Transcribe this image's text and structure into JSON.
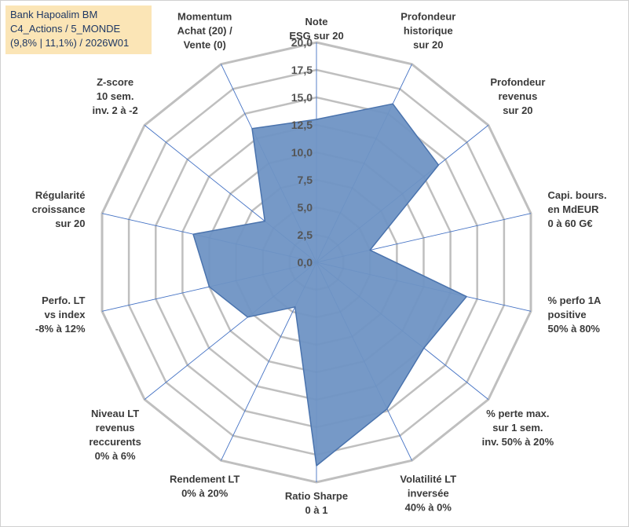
{
  "title": {
    "line1": "Bank Hapoalim BM",
    "line2": "C4_Actions / 5_MONDE",
    "line3": "(9,8% | 11,1%) / 2026W01"
  },
  "colors": {
    "fill": "#6f94c4",
    "stroke": "#4a73ad",
    "grid": "#bfbfbf",
    "spoke": "#4472c4",
    "title_bg": "#fbe5b6"
  },
  "chart_data": {
    "type": "radar",
    "rmax": 20,
    "ticks": [
      "0,0",
      "2,5",
      "5,0",
      "7,5",
      "10,0",
      "12,5",
      "15,0",
      "17,5",
      "20,0"
    ],
    "axes": [
      {
        "label": [
          "Note",
          "ESG sur 20"
        ],
        "value": 13.0
      },
      {
        "label": [
          "Profondeur",
          "historique",
          "sur 20"
        ],
        "value": 16.0
      },
      {
        "label": [
          "Profondeur",
          "revenus",
          "sur 20"
        ],
        "value": 14.2
      },
      {
        "label": [
          "Capi. bours.",
          "en MdEUR",
          "0 à 60 G€"
        ],
        "value": 5.0
      },
      {
        "label": [
          "% perfo 1A",
          "positive",
          "50% à 80%"
        ],
        "value": 14.0
      },
      {
        "label": [
          "% perte max.",
          "sur 1 sem.",
          "inv. 50% à 20%"
        ],
        "value": 12.5
      },
      {
        "label": [
          "Volatilité LT",
          "inversée",
          "40% à 0%"
        ],
        "value": 14.8
      },
      {
        "label": [
          "Ratio Sharpe",
          "0 à 1"
        ],
        "value": 18.5
      },
      {
        "label": [
          "Rendement LT",
          "0% à 20%"
        ],
        "value": 4.5
      },
      {
        "label": [
          "Niveau LT",
          "revenus",
          "reccurents",
          "0% à 6%"
        ],
        "value": 8.0
      },
      {
        "label": [
          "Perfo. LT",
          "vs index",
          "-8% à 12%"
        ],
        "value": 10.0
      },
      {
        "label": [
          "Régularité",
          "croissance",
          "sur 20"
        ],
        "value": 11.5
      },
      {
        "label": [
          "Z-score",
          "10 sem.",
          "inv. 2 à -2"
        ],
        "value": 6.0
      },
      {
        "label": [
          "Momentum",
          "Achat (20) /",
          "Vente (0)"
        ],
        "value": 13.5
      }
    ]
  }
}
